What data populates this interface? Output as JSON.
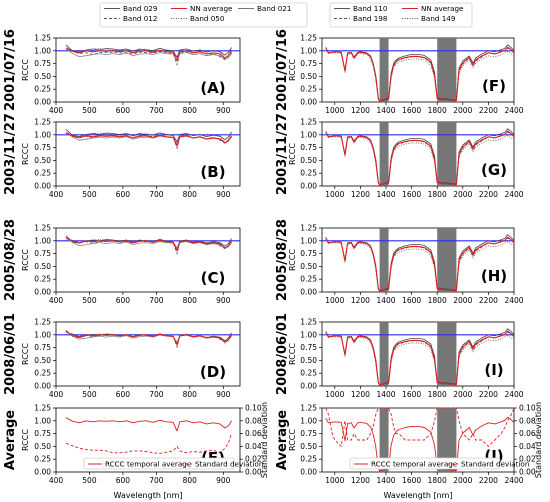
{
  "chart_data": {
    "type": "line",
    "legend_left": [
      {
        "name": "Band 029",
        "style": "solid",
        "color": "#555555"
      },
      {
        "name": "Band 012",
        "style": "dashed",
        "color": "#555555"
      },
      {
        "name": "NN average",
        "style": "solid",
        "color": "#e02020"
      },
      {
        "name": "Band 050",
        "style": "dotted",
        "color": "#555555"
      },
      {
        "name": "Band 021",
        "style": "solid",
        "color": "#777777"
      }
    ],
    "legend_right": [
      {
        "name": "Band 110",
        "style": "solid",
        "color": "#555555"
      },
      {
        "name": "Band 198",
        "style": "dashed",
        "color": "#555555"
      },
      {
        "name": "NN average",
        "style": "solid",
        "color": "#e02020"
      },
      {
        "name": "Band 149",
        "style": "dotted",
        "color": "#555555"
      }
    ],
    "colors": {
      "nn": "#e02020",
      "reference": "#2a2aff",
      "band": "#555555",
      "gap": "#777777"
    },
    "rows": [
      "2001/07/16",
      "2003/11/27",
      "2005/08/28",
      "2008/06/01",
      "Average"
    ],
    "panel_labels_left": [
      "(A)",
      "(B)",
      "(C)",
      "(D)",
      "(E)"
    ],
    "panel_labels_right": [
      "(F)",
      "(G)",
      "(H)",
      "(I)",
      "(J)"
    ],
    "ylabel": "RCCC",
    "ylabel2": "Standard deviation",
    "xlabel": "Wavelength [nm]",
    "ylim": [
      0,
      1.25
    ],
    "yticks": [
      "0.00",
      "0.25",
      "0.50",
      "0.75",
      "1.00",
      "1.25"
    ],
    "y2ticks": [
      "0.00",
      "0.02",
      "0.04",
      "0.06",
      "0.08",
      "0.10"
    ],
    "left_xlim": [
      400,
      950
    ],
    "left_xticks": [
      "400",
      "500",
      "600",
      "700",
      "800",
      "900"
    ],
    "right_xlim": [
      900,
      2400
    ],
    "right_xticks": [
      "1000",
      "1200",
      "1400",
      "1600",
      "1800",
      "2000",
      "2200",
      "2400"
    ],
    "gaps": [
      [
        1350,
        1420
      ],
      [
        1800,
        1950
      ]
    ],
    "avg_legend": [
      "RCCC temporal average",
      "Standard deviation"
    ],
    "left_x": [
      430,
      450,
      470,
      490,
      510,
      530,
      550,
      570,
      590,
      610,
      630,
      650,
      670,
      690,
      710,
      730,
      750,
      762,
      770,
      790,
      810,
      830,
      850,
      870,
      890,
      905,
      915,
      925
    ],
    "left_series": [
      [
        1.1,
        0.98,
        0.96,
        1.0,
        1.02,
        1.0,
        1.03,
        1.02,
        1.0,
        1.02,
        0.98,
        1.02,
        1.0,
        0.99,
        1.03,
        1.0,
        0.98,
        0.86,
        1.0,
        1.02,
        0.98,
        1.0,
        0.96,
        0.99,
        0.97,
        0.9,
        0.95,
        1.05
      ],
      [
        1.05,
        1.0,
        0.96,
        0.98,
        0.94,
        0.98,
        0.98,
        0.99,
        0.97,
        0.98,
        0.95,
        0.99,
        0.98,
        0.97,
        1.0,
        0.97,
        0.96,
        0.74,
        0.98,
        1.0,
        0.94,
        0.96,
        0.92,
        0.96,
        0.9,
        0.84,
        0.88,
        0.98
      ],
      [
        1.02,
        1.0,
        0.96,
        1.0,
        1.02,
        1.03,
        1.02,
        1.0,
        0.98,
        1.02,
        0.97,
        1.0,
        1.02,
        0.98,
        1.04,
        1.0,
        0.99,
        0.82,
        1.0,
        1.02,
        0.98,
        1.0,
        0.97,
        0.98,
        0.96,
        0.85,
        0.9,
        1.02
      ],
      [
        1.05,
        0.96,
        0.9,
        0.92,
        0.94,
        0.96,
        0.94,
        0.96,
        0.94,
        0.97,
        0.92,
        0.95,
        0.96,
        0.94,
        0.98,
        0.96,
        0.95,
        0.84,
        0.96,
        0.98,
        0.94,
        0.96,
        0.92,
        0.94,
        0.92,
        0.86,
        0.88,
        0.96
      ]
    ],
    "left_avg": [
      1.06,
      0.99,
      0.96,
      1.0,
      0.98,
      1.0,
      0.99,
      1.0,
      0.98,
      1.0,
      0.96,
      0.99,
      1.0,
      0.97,
      1.01,
      0.98,
      0.97,
      0.8,
      0.98,
      1.0,
      0.96,
      0.98,
      0.94,
      0.96,
      0.94,
      0.86,
      0.9,
      1.0
    ],
    "left_std": [
      0.045,
      0.041,
      0.037,
      0.035,
      0.034,
      0.034,
      0.033,
      0.03,
      0.03,
      0.031,
      0.033,
      0.033,
      0.032,
      0.03,
      0.029,
      0.031,
      0.033,
      0.04,
      0.033,
      0.03,
      0.032,
      0.031,
      0.033,
      0.034,
      0.03,
      0.037,
      0.045,
      0.06
    ],
    "right_x": [
      930,
      950,
      980,
      1000,
      1050,
      1080,
      1100,
      1130,
      1150,
      1180,
      1200,
      1250,
      1280,
      1300,
      1320,
      1340,
      1350,
      1420,
      1440,
      1460,
      1480,
      1500,
      1550,
      1600,
      1650,
      1700,
      1750,
      1780,
      1800,
      1950,
      1970,
      2000,
      2050,
      2080,
      2100,
      2150,
      2200,
      2250,
      2300,
      2330,
      2350,
      2380,
      2400
    ],
    "right_series": [
      [
        1.06,
        0.95,
        0.97,
        0.98,
        0.97,
        0.62,
        0.96,
        0.97,
        0.88,
        0.97,
        0.98,
        0.96,
        0.9,
        0.76,
        0.52,
        0.08,
        0.02,
        0.08,
        0.56,
        0.76,
        0.82,
        0.86,
        0.9,
        0.93,
        0.93,
        0.91,
        0.82,
        0.58,
        0.08,
        0.04,
        0.66,
        0.8,
        0.9,
        0.76,
        0.86,
        0.94,
        1.0,
        0.98,
        1.02,
        1.05,
        1.12,
        1.06,
        1.0
      ],
      [
        1.06,
        0.96,
        0.97,
        0.98,
        0.97,
        0.6,
        0.95,
        0.96,
        0.86,
        0.96,
        0.97,
        0.95,
        0.88,
        0.72,
        0.48,
        0.06,
        0.01,
        0.06,
        0.5,
        0.7,
        0.78,
        0.82,
        0.86,
        0.88,
        0.88,
        0.86,
        0.76,
        0.5,
        0.06,
        0.02,
        0.6,
        0.74,
        0.86,
        0.7,
        0.8,
        0.88,
        0.96,
        0.94,
        0.98,
        1.0,
        1.05,
        1.02,
        0.95
      ],
      [
        1.07,
        0.96,
        0.96,
        0.96,
        0.95,
        0.58,
        0.93,
        0.94,
        0.84,
        0.94,
        0.95,
        0.92,
        0.85,
        0.7,
        0.44,
        0.05,
        0.01,
        0.05,
        0.46,
        0.68,
        0.74,
        0.78,
        0.82,
        0.84,
        0.84,
        0.82,
        0.72,
        0.46,
        0.05,
        0.02,
        0.56,
        0.7,
        0.82,
        0.66,
        0.76,
        0.84,
        0.9,
        0.88,
        0.92,
        0.96,
        0.98,
        0.94,
        0.9
      ],
      [
        1.04,
        0.96,
        0.97,
        0.98,
        0.97,
        0.62,
        0.96,
        0.97,
        0.88,
        0.97,
        0.98,
        0.96,
        0.9,
        0.76,
        0.52,
        0.08,
        0.02,
        0.08,
        0.56,
        0.76,
        0.82,
        0.86,
        0.9,
        0.93,
        0.93,
        0.91,
        0.82,
        0.58,
        0.08,
        0.04,
        0.66,
        0.8,
        0.9,
        0.76,
        0.86,
        0.94,
        1.0,
        0.98,
        1.02,
        1.05,
        1.12,
        1.06,
        1.0
      ]
    ],
    "right_avg": [
      1.05,
      0.96,
      0.97,
      0.98,
      0.97,
      0.61,
      0.95,
      0.96,
      0.86,
      0.96,
      0.97,
      0.95,
      0.88,
      0.74,
      0.49,
      0.07,
      0.02,
      0.06,
      0.52,
      0.72,
      0.79,
      0.83,
      0.87,
      0.89,
      0.89,
      0.87,
      0.78,
      0.52,
      0.07,
      0.03,
      0.62,
      0.76,
      0.87,
      0.72,
      0.82,
      0.9,
      0.96,
      0.94,
      0.98,
      1.01,
      1.07,
      1.02,
      0.96
    ],
    "right_std": [
      0.1,
      0.09,
      0.06,
      0.05,
      0.04,
      0.08,
      0.05,
      0.05,
      0.06,
      0.05,
      0.05,
      0.05,
      0.06,
      0.07,
      0.09,
      0.1,
      0.1,
      0.1,
      0.09,
      0.07,
      0.06,
      0.06,
      0.05,
      0.05,
      0.05,
      0.05,
      0.06,
      0.08,
      0.1,
      0.1,
      0.08,
      0.06,
      0.05,
      0.06,
      0.05,
      0.05,
      0.04,
      0.05,
      0.06,
      0.07,
      0.08,
      0.09,
      0.1
    ]
  }
}
